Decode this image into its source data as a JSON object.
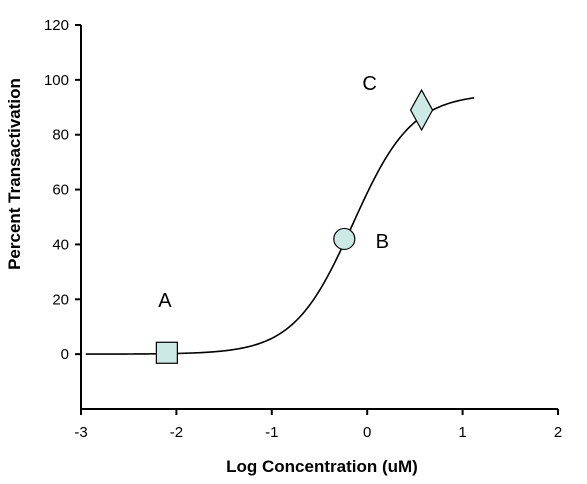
{
  "chart_data": {
    "type": "line",
    "title": "",
    "xlabel": "Log Concentration (uM)",
    "ylabel": "Percent Transactivation",
    "xlim": [
      -3,
      2
    ],
    "ylim": [
      -20,
      120
    ],
    "x_ticks": [
      -3,
      -2,
      -1,
      0,
      1,
      2
    ],
    "x_tick_labels": [
      "-3",
      "-2",
      "-1",
      "0",
      "1",
      "2"
    ],
    "y_ticks": [
      0,
      20,
      40,
      60,
      80,
      100,
      120
    ],
    "y_tick_labels": [
      "0",
      "20",
      "40",
      "60",
      "80",
      "100",
      "120"
    ],
    "grid": false,
    "curve": {
      "model": "sigmoid",
      "bottom": 0,
      "top": 95,
      "ec50_log": -0.15,
      "hill": 1.4,
      "x_range": [
        -2.95,
        1.12
      ]
    },
    "points": [
      {
        "label": "A",
        "x": -2.1,
        "y": 0.5,
        "marker": "square"
      },
      {
        "label": "B",
        "x": -0.24,
        "y": 42,
        "marker": "circle"
      },
      {
        "label": "C",
        "x": 0.57,
        "y": 89,
        "marker": "diamond"
      }
    ],
    "marker_color": "#cde9e6"
  }
}
